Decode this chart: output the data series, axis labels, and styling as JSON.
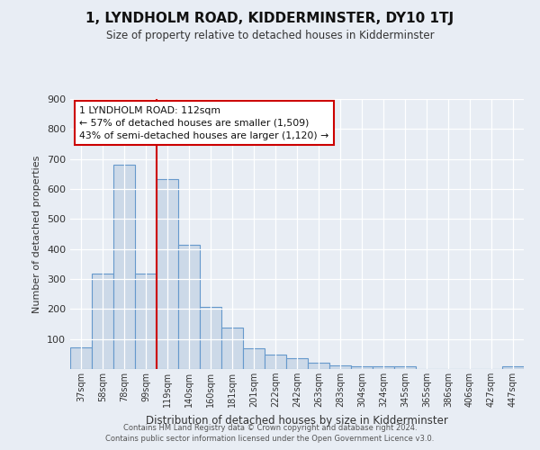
{
  "title": "1, LYNDHOLM ROAD, KIDDERMINSTER, DY10 1TJ",
  "subtitle": "Size of property relative to detached houses in Kidderminster",
  "xlabel": "Distribution of detached houses by size in Kidderminster",
  "ylabel": "Number of detached properties",
  "categories": [
    "37sqm",
    "58sqm",
    "78sqm",
    "99sqm",
    "119sqm",
    "140sqm",
    "160sqm",
    "181sqm",
    "201sqm",
    "222sqm",
    "242sqm",
    "263sqm",
    "283sqm",
    "304sqm",
    "324sqm",
    "345sqm",
    "365sqm",
    "386sqm",
    "406sqm",
    "427sqm",
    "447sqm"
  ],
  "values": [
    72,
    318,
    680,
    318,
    634,
    413,
    208,
    138,
    70,
    48,
    35,
    22,
    12,
    10,
    8,
    8,
    0,
    0,
    0,
    0,
    8
  ],
  "bar_color": "#ccd9e8",
  "bar_edge_color": "#6699cc",
  "red_line_index": 3.5,
  "annotation_title": "1 LYNDHOLM ROAD: 112sqm",
  "annotation_line1": "← 57% of detached houses are smaller (1,509)",
  "annotation_line2": "43% of semi-detached houses are larger (1,120) →",
  "ylim": [
    0,
    900
  ],
  "yticks": [
    0,
    100,
    200,
    300,
    400,
    500,
    600,
    700,
    800,
    900
  ],
  "background_color": "#e8edf4",
  "grid_color": "#ffffff",
  "footer1": "Contains HM Land Registry data © Crown copyright and database right 2024.",
  "footer2": "Contains public sector information licensed under the Open Government Licence v3.0."
}
